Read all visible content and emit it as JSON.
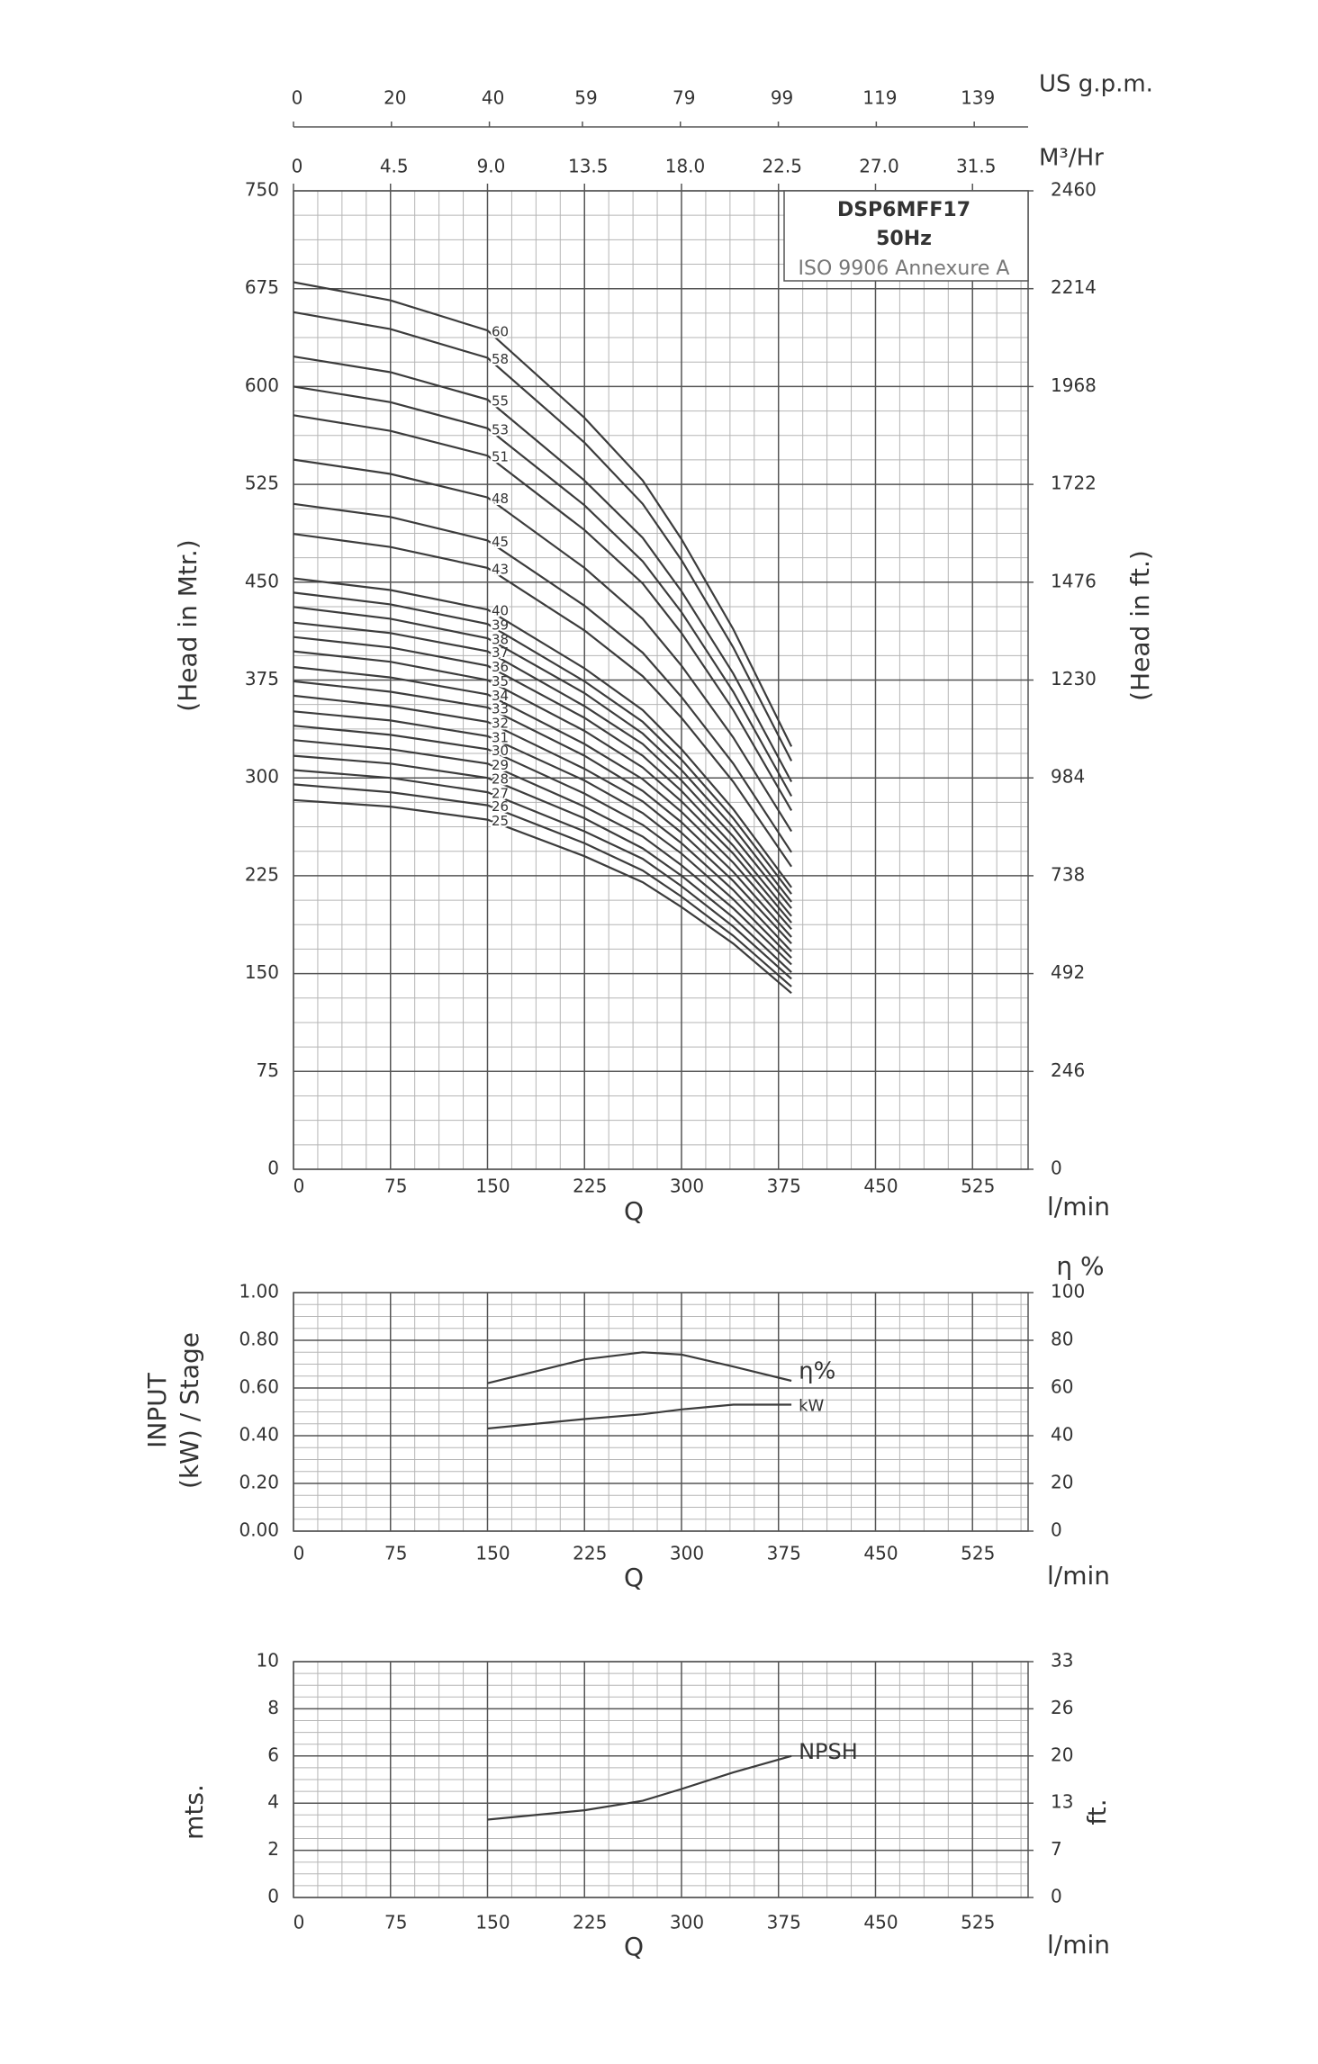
{
  "chart_data": [
    {
      "type": "line",
      "title": "DSP6MFF17",
      "subtitle": "50Hz",
      "annotation": "ISO 9906 Annexure A",
      "xlabel": "Q",
      "xunit": "l/min",
      "ylabel": "(Head in Mtr.)",
      "y2label": "(Head in ft.)",
      "x": [
        0,
        75,
        150,
        225,
        270,
        300,
        340,
        385
      ],
      "xlim": [
        0,
        568
      ],
      "xticks": [
        0,
        75,
        150,
        225,
        300,
        375,
        450,
        525
      ],
      "ylim": [
        0,
        750
      ],
      "yticks": [
        0,
        75,
        150,
        225,
        300,
        375,
        450,
        525,
        600,
        675,
        750
      ],
      "y2lim": [
        0,
        2460
      ],
      "y2ticks": [
        0,
        246,
        492,
        738,
        984,
        1230,
        1476,
        1722,
        1968,
        2214,
        2460
      ],
      "top_axes": [
        {
          "label": "US g.p.m.",
          "lim": [
            0,
            150
          ],
          "ticks": [
            0,
            20,
            40,
            59,
            79,
            99,
            119,
            139
          ]
        },
        {
          "label": "M³/Hr",
          "lim": [
            0,
            34.08
          ],
          "ticks": [
            0,
            4.5,
            {
              "value": 9,
              "label": "9.0"
            },
            13.5,
            {
              "value": 18,
              "label": "18.0"
            },
            22.5,
            {
              "value": 27,
              "label": "27.0"
            },
            31.5
          ]
        }
      ],
      "grid": true,
      "minor_divisions": 4,
      "color": "#3c3c3c",
      "series": [
        {
          "name": "25",
          "values": [
            283,
            278,
            268,
            240,
            220,
            201,
            173,
            135
          ]
        },
        {
          "name": "26",
          "values": [
            295,
            289,
            279,
            250,
            229,
            209,
            179,
            140
          ]
        },
        {
          "name": "27",
          "values": [
            306,
            300,
            289,
            259,
            238,
            217,
            186,
            146
          ]
        },
        {
          "name": "28",
          "values": [
            317,
            311,
            300,
            269,
            246,
            225,
            193,
            151
          ]
        },
        {
          "name": "29",
          "values": [
            329,
            322,
            311,
            278,
            255,
            233,
            200,
            157
          ]
        },
        {
          "name": "30",
          "values": [
            340,
            333,
            322,
            288,
            264,
            242,
            207,
            162
          ]
        },
        {
          "name": "31",
          "values": [
            351,
            344,
            332,
            298,
            273,
            250,
            214,
            167
          ]
        },
        {
          "name": "32",
          "values": [
            363,
            355,
            343,
            307,
            282,
            258,
            221,
            173
          ]
        },
        {
          "name": "33",
          "values": [
            374,
            366,
            354,
            317,
            290,
            266,
            228,
            178
          ]
        },
        {
          "name": "34",
          "values": [
            385,
            377,
            364,
            326,
            299,
            274,
            235,
            184
          ]
        },
        {
          "name": "35",
          "values": [
            397,
            389,
            375,
            336,
            308,
            282,
            242,
            189
          ]
        },
        {
          "name": "36",
          "values": [
            408,
            400,
            386,
            346,
            317,
            290,
            248,
            194
          ]
        },
        {
          "name": "37",
          "values": [
            419,
            411,
            397,
            355,
            326,
            298,
            255,
            200
          ]
        },
        {
          "name": "38",
          "values": [
            431,
            422,
            407,
            365,
            334,
            306,
            262,
            205
          ]
        },
        {
          "name": "39",
          "values": [
            442,
            433,
            418,
            374,
            343,
            314,
            269,
            211
          ]
        },
        {
          "name": "40",
          "values": [
            453,
            444,
            429,
            384,
            352,
            322,
            276,
            216
          ]
        },
        {
          "name": "43",
          "values": [
            487,
            477,
            461,
            413,
            378,
            346,
            297,
            232
          ]
        },
        {
          "name": "45",
          "values": [
            510,
            500,
            482,
            432,
            396,
            362,
            311,
            243
          ]
        },
        {
          "name": "48",
          "values": [
            544,
            533,
            515,
            461,
            422,
            386,
            331,
            259
          ]
        },
        {
          "name": "51",
          "values": [
            578,
            566,
            547,
            490,
            449,
            411,
            352,
            275
          ]
        },
        {
          "name": "53",
          "values": [
            600,
            588,
            568,
            509,
            466,
            427,
            366,
            286
          ]
        },
        {
          "name": "55",
          "values": [
            623,
            611,
            590,
            528,
            484,
            443,
            380,
            297
          ]
        },
        {
          "name": "58",
          "values": [
            657,
            644,
            622,
            557,
            510,
            467,
            400,
            313
          ]
        },
        {
          "name": "60",
          "values": [
            680,
            666,
            643,
            576,
            528,
            483,
            414,
            324
          ]
        }
      ]
    },
    {
      "type": "line",
      "xlabel": "Q",
      "xunit": "l/min",
      "ylabel_lines": [
        "INPUT",
        "(kW) / Stage"
      ],
      "y2label": "η %",
      "x": [
        150,
        225,
        270,
        300,
        340,
        385
      ],
      "xlim": [
        0,
        568
      ],
      "xticks": [
        0,
        75,
        150,
        225,
        300,
        375,
        450,
        525
      ],
      "ylim": [
        0,
        1
      ],
      "yticks": [
        {
          "value": 0,
          "label": "0.00"
        },
        {
          "value": 0.2,
          "label": "0.20"
        },
        {
          "value": 0.4,
          "label": "0.40"
        },
        {
          "value": 0.6,
          "label": "0.60"
        },
        {
          "value": 0.8,
          "label": "0.80"
        },
        {
          "value": 1,
          "label": "1.00"
        }
      ],
      "y2lim": [
        0,
        100
      ],
      "y2ticks": [
        0,
        20,
        40,
        60,
        80,
        100
      ],
      "grid": true,
      "minor_divisions": 4,
      "color": "#3c3c3c",
      "series": [
        {
          "name": "η%",
          "axis": "y2",
          "values": [
            62,
            72,
            75,
            74,
            69,
            63
          ]
        },
        {
          "name": "kW",
          "values": [
            0.43,
            0.47,
            0.49,
            0.51,
            0.53,
            0.53
          ]
        }
      ]
    },
    {
      "type": "line",
      "xlabel": "Q",
      "xunit": "l/min",
      "ylabel": "mts.",
      "y2label": "ft.",
      "x": [
        150,
        225,
        270,
        300,
        340,
        385
      ],
      "xlim": [
        0,
        568
      ],
      "xticks": [
        0,
        75,
        150,
        225,
        300,
        375,
        450,
        525
      ],
      "ylim": [
        0,
        10
      ],
      "yticks": [
        0,
        2,
        4,
        6,
        8,
        10
      ],
      "y2lim": [
        0,
        32.81
      ],
      "y2ticks": [
        0,
        {
          "value": 6.56,
          "label": "7"
        },
        {
          "value": 13.12,
          "label": "13"
        },
        {
          "value": 19.69,
          "label": "20"
        },
        {
          "value": 26.25,
          "label": "26"
        },
        {
          "value": 32.81,
          "label": "33"
        }
      ],
      "grid": true,
      "minor_divisions": 4,
      "color": "#3c3c3c",
      "series": [
        {
          "name": "NPSH",
          "values": [
            3.3,
            3.7,
            4.1,
            4.6,
            5.3,
            6.0
          ]
        }
      ]
    }
  ]
}
